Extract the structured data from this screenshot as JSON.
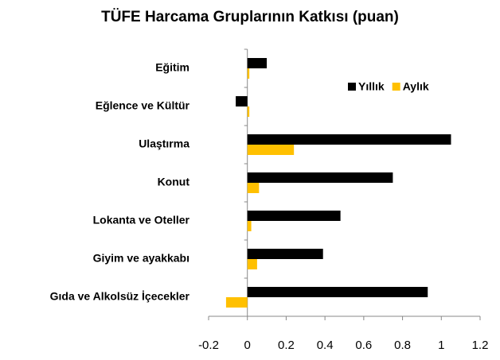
{
  "chart_data": {
    "type": "hbar",
    "title": "TÜFE Harcama Gruplarının Katkısı (puan)",
    "categories": [
      "Eğitim",
      "Eğlence ve Kültür",
      "Ulaştırma",
      "Konut",
      "Lokanta ve Oteller",
      "Giyim ve ayakkabı",
      "Gıda ve Alkolsüz İçecekler"
    ],
    "series": [
      {
        "name": "Yıllık",
        "color": "#000000",
        "values": [
          0.1,
          -0.06,
          1.05,
          0.75,
          0.48,
          0.39,
          0.93
        ]
      },
      {
        "name": "Aylık",
        "color": "#ffc000",
        "values": [
          0.01,
          0.01,
          0.24,
          0.06,
          0.02,
          0.05,
          -0.11
        ]
      }
    ],
    "xlim": [
      -0.2,
      1.2
    ],
    "xticks": [
      -0.2,
      0,
      0.2,
      0.4,
      0.6,
      0.8,
      1,
      1.2
    ],
    "legend": "top-right"
  }
}
